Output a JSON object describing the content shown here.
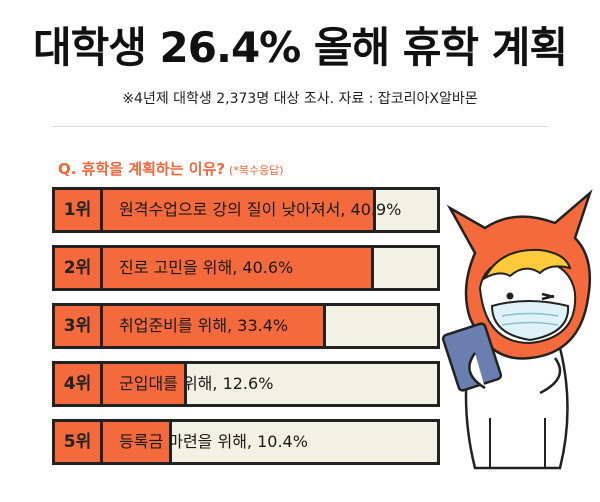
{
  "header": {
    "title": "대학생 26.4% 올해 휴학 계획",
    "subtitle": "※4년제 대학생 2,373명 대상 조사. 자료 : 잡코리아X알바몬"
  },
  "question": {
    "text": "Q. 휴학을 계획하는 이유?",
    "note": "(*복수응답)"
  },
  "colors": {
    "accent": "#f56a3c",
    "track": "#f1f1e4",
    "outline": "#222222"
  },
  "chart_data": {
    "type": "bar",
    "orientation": "horizontal",
    "title": "Q. 휴학을 계획하는 이유? (*복수응답)",
    "xlim": [
      0,
      50
    ],
    "unit": "%",
    "categories": [
      "1위",
      "2위",
      "3위",
      "4위",
      "5위"
    ],
    "labels": [
      "원격수업으로 강의 질이 낮아져서, 40.9%",
      "진로 고민을 위해, 40.6%",
      "취업준비를 위해, 33.4%",
      "군입대를 위해, 12.6%",
      "등록금 마련을 위해, 10.4%"
    ],
    "values": [
      40.9,
      40.6,
      33.4,
      12.6,
      10.4
    ]
  },
  "mascot": {
    "icon": "cat-mascot-with-mask-icon"
  }
}
